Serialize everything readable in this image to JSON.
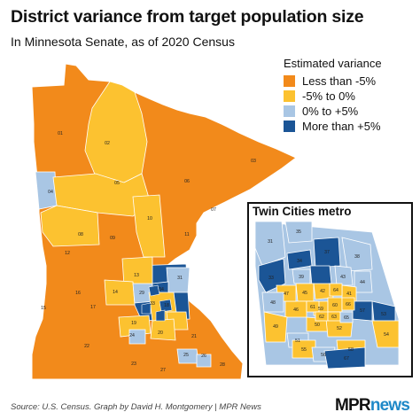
{
  "title": "District variance from target population size",
  "subtitle": "In Minnesota Senate, as of 2020 Census",
  "legend": {
    "title": "Estimated variance",
    "items": [
      {
        "label": "Less than -5%",
        "color": "#f28a1b"
      },
      {
        "label": "-5% to 0%",
        "color": "#fcc230"
      },
      {
        "label": "0% to +5%",
        "color": "#a9c6e4"
      },
      {
        "label": "More than +5%",
        "color": "#1b5596"
      }
    ]
  },
  "inset": {
    "title": "Twin Cities metro"
  },
  "colors": {
    "border": "#ffffff",
    "metro_box": "#111111"
  },
  "districts": [
    {
      "id": "01",
      "variance": "Less than -5%"
    },
    {
      "id": "02",
      "variance": "-5% to 0%"
    },
    {
      "id": "03",
      "variance": "Less than -5%"
    },
    {
      "id": "04",
      "variance": "0% to +5%"
    },
    {
      "id": "05",
      "variance": "-5% to 0%"
    },
    {
      "id": "06",
      "variance": "Less than -5%"
    },
    {
      "id": "07",
      "variance": "Less than -5%"
    },
    {
      "id": "08",
      "variance": "-5% to 0%"
    },
    {
      "id": "09",
      "variance": "Less than -5%"
    },
    {
      "id": "10",
      "variance": "-5% to 0%"
    },
    {
      "id": "11",
      "variance": "Less than -5%"
    },
    {
      "id": "12",
      "variance": "Less than -5%"
    },
    {
      "id": "13",
      "variance": "-5% to 0%"
    },
    {
      "id": "14",
      "variance": "-5% to 0%"
    },
    {
      "id": "15",
      "variance": "Less than -5%"
    },
    {
      "id": "16",
      "variance": "Less than -5%"
    },
    {
      "id": "17",
      "variance": "Less than -5%"
    },
    {
      "id": "18",
      "variance": "-5% to 0%"
    },
    {
      "id": "19",
      "variance": "-5% to 0%"
    },
    {
      "id": "20",
      "variance": "-5% to 0%"
    },
    {
      "id": "21",
      "variance": "Less than -5%"
    },
    {
      "id": "22",
      "variance": "Less than -5%"
    },
    {
      "id": "23",
      "variance": "Less than -5%"
    },
    {
      "id": "24",
      "variance": "0% to +5%"
    },
    {
      "id": "25",
      "variance": "0% to +5%"
    },
    {
      "id": "26",
      "variance": "0% to +5%"
    },
    {
      "id": "27",
      "variance": "Less than -5%"
    },
    {
      "id": "28",
      "variance": "Less than -5%"
    },
    {
      "id": "29",
      "variance": "0% to +5%"
    },
    {
      "id": "31",
      "variance": "0% to +5%"
    },
    {
      "id": "33",
      "variance": "More than +5%"
    },
    {
      "id": "34",
      "variance": "More than +5%"
    },
    {
      "id": "35",
      "variance": "0% to +5%"
    },
    {
      "id": "37",
      "variance": "More than +5%"
    },
    {
      "id": "38",
      "variance": "0% to +5%"
    },
    {
      "id": "39",
      "variance": "0% to +5%"
    },
    {
      "id": "41",
      "variance": "-5% to 0%"
    },
    {
      "id": "42",
      "variance": "-5% to 0%"
    },
    {
      "id": "43",
      "variance": "0% to +5%"
    },
    {
      "id": "44",
      "variance": "0% to +5%"
    },
    {
      "id": "45",
      "variance": "-5% to 0%"
    },
    {
      "id": "46",
      "variance": "-5% to 0%"
    },
    {
      "id": "47",
      "variance": "-5% to 0%"
    },
    {
      "id": "48",
      "variance": "0% to +5%"
    },
    {
      "id": "49",
      "variance": "-5% to 0%"
    },
    {
      "id": "50",
      "variance": "-5% to 0%"
    },
    {
      "id": "51",
      "variance": "0% to +5%"
    },
    {
      "id": "52",
      "variance": "-5% to 0%"
    },
    {
      "id": "53",
      "variance": "More than +5%"
    },
    {
      "id": "54",
      "variance": "-5% to 0%"
    },
    {
      "id": "55",
      "variance": "-5% to 0%"
    },
    {
      "id": "56",
      "variance": "0% to +5%"
    },
    {
      "id": "57",
      "variance": "More than +5%"
    },
    {
      "id": "58",
      "variance": "-5% to 0%"
    },
    {
      "id": "59",
      "variance": "-5% to 0%"
    },
    {
      "id": "60",
      "variance": "-5% to 0%"
    },
    {
      "id": "61",
      "variance": "-5% to 0%"
    },
    {
      "id": "62",
      "variance": "-5% to 0%"
    },
    {
      "id": "63",
      "variance": "-5% to 0%"
    },
    {
      "id": "64",
      "variance": "-5% to 0%"
    },
    {
      "id": "65",
      "variance": "0% to +5%"
    },
    {
      "id": "66",
      "variance": "-5% to 0%"
    },
    {
      "id": "67",
      "variance": "More than +5%"
    }
  ],
  "footer": {
    "source": "Source: U.S. Census. Graph by David H. Montgomery | MPR News",
    "logo_mpr": "MPR",
    "logo_news": "news"
  }
}
